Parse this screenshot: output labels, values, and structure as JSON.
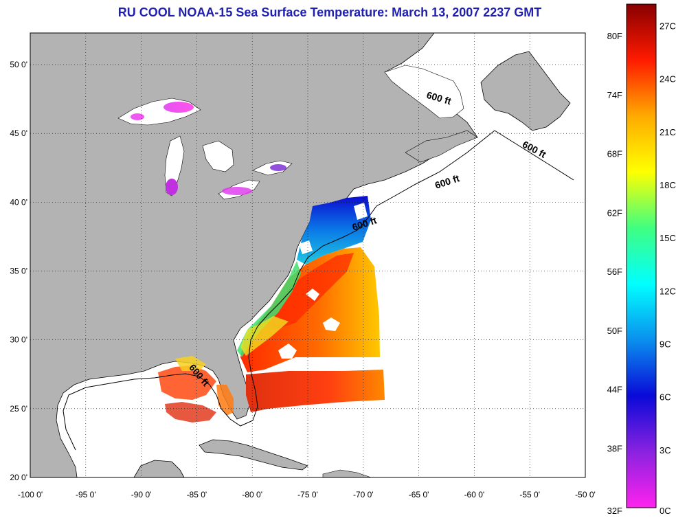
{
  "title": "RU COOL  NOAA-15  Sea Surface Temperature:  March 13, 2007 2237 GMT",
  "map": {
    "lon_range": [
      -100,
      -50
    ],
    "lat_range": [
      20,
      52.3
    ],
    "lon_ticks": [
      "-100 0'",
      "-95 0'",
      "-90 0'",
      "-85 0'",
      "-80 0'",
      "-75 0'",
      "-70 0'",
      "-65 0'",
      "-60 0'",
      "-55 0'",
      "-50 0'"
    ],
    "lat_ticks": [
      "20 0'",
      "25 0'",
      "30 0'",
      "35 0'",
      "40 0'",
      "45 0'",
      "50 0'"
    ],
    "grid": true,
    "land_color": "#b3b3b3",
    "ocean_color": "#ffffff",
    "isobath_labels": [
      "600 ft",
      "600 ft",
      "600 ft",
      "600 ft",
      "600 ft"
    ]
  },
  "colorbar": {
    "fahrenheit_labels": [
      "32F",
      "38F",
      "44F",
      "50F",
      "56F",
      "62F",
      "68F",
      "74F",
      "80F"
    ],
    "celsius_labels": [
      "0C",
      "3C",
      "6C",
      "9C",
      "12C",
      "15C",
      "18C",
      "21C",
      "24C",
      "27C"
    ],
    "range_c": [
      0,
      28.5
    ],
    "stops": [
      "#ff22ee",
      "#8a22e0",
      "#0a0ad8",
      "#0a90ee",
      "#00ffff",
      "#40ff80",
      "#ffff00",
      "#ffaa00",
      "#ff1a00",
      "#880000"
    ]
  }
}
